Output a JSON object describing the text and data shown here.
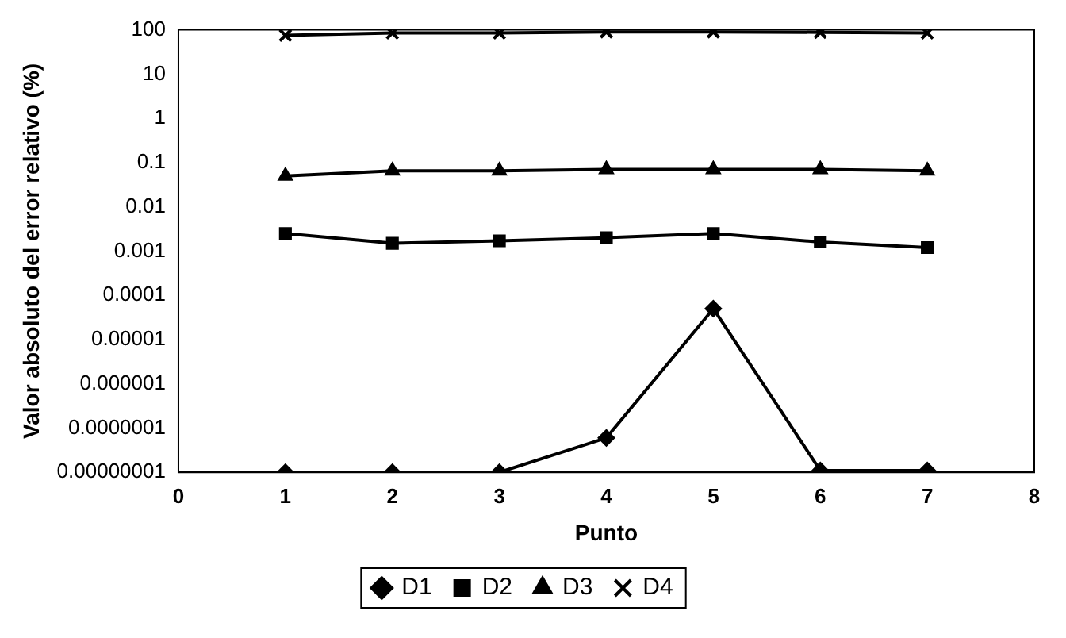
{
  "chart_data": {
    "type": "line",
    "xlabel": "Punto",
    "ylabel": "Valor absoluto del error relativo (%)",
    "log": "y",
    "grid": false,
    "legend": "bottom",
    "xlim": [
      0,
      8
    ],
    "xticks": [
      0,
      1,
      2,
      3,
      4,
      5,
      6,
      7,
      8
    ],
    "ylim": [
      1e-08,
      100
    ],
    "yticks": [
      100,
      10,
      1,
      0.1,
      0.01,
      0.001,
      0.0001,
      {
        "value": 1e-05,
        "label": "0.00001"
      },
      {
        "value": 1e-06,
        "label": "0.000001"
      },
      {
        "value": 1e-07,
        "label": "0.0000001"
      },
      {
        "value": 1e-08,
        "label": "0.00000001"
      }
    ],
    "x": [
      1,
      2,
      3,
      4,
      5,
      6,
      7
    ],
    "series": [
      {
        "name": "D1",
        "color": "#000000",
        "marker": "diamond",
        "values": [
          1e-08,
          1e-08,
          1e-08,
          6e-08,
          5e-05,
          1.1e-08,
          1.1e-08
        ]
      },
      {
        "name": "D2",
        "color": "#000000",
        "marker": "square",
        "values": [
          0.0025,
          0.0015,
          0.0017,
          0.002,
          0.0025,
          0.0016,
          0.0012
        ]
      },
      {
        "name": "D3",
        "color": "#000000",
        "marker": "triangle",
        "values": [
          0.05,
          0.065,
          0.065,
          0.07,
          0.07,
          0.07,
          0.065
        ]
      },
      {
        "name": "D4",
        "color": "#000000",
        "marker": "cross",
        "values": [
          75,
          85,
          85,
          90,
          90,
          88,
          85
        ]
      }
    ]
  }
}
